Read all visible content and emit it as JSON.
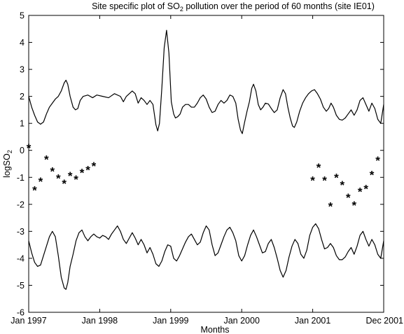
{
  "chart_data": {
    "type": "line",
    "title_prefix": "Site specific plot of SO",
    "title_sub": "2",
    "title_suffix": " pollution over the period of 60 months (site IE01)",
    "xlabel": "Months",
    "ylabel_prefix": "logSO",
    "ylabel_sub": "2",
    "xlim": [
      1,
      61
    ],
    "ylim": [
      -6,
      5
    ],
    "grid": false,
    "x_ticks": [
      {
        "x": 1,
        "label": "Jan 1997"
      },
      {
        "x": 13,
        "label": "Jan 1998"
      },
      {
        "x": 25,
        "label": "Jan 1999"
      },
      {
        "x": 37,
        "label": "Jan 2000"
      },
      {
        "x": 49,
        "label": "Jan 2001"
      },
      {
        "x": 61,
        "label": "Dec 2001"
      }
    ],
    "y_ticks": [
      -6,
      -5,
      -4,
      -3,
      -2,
      -1,
      0,
      1,
      2,
      3,
      4,
      5
    ],
    "series": [
      {
        "kind": "upper_band",
        "color": "#000000",
        "points": [
          [
            1.0,
            2.0
          ],
          [
            1.5,
            1.6
          ],
          [
            2.0,
            1.3
          ],
          [
            2.5,
            1.05
          ],
          [
            3.0,
            0.97
          ],
          [
            3.5,
            1.05
          ],
          [
            4.0,
            1.35
          ],
          [
            4.5,
            1.6
          ],
          [
            5.0,
            1.75
          ],
          [
            5.5,
            1.9
          ],
          [
            6.0,
            2.0
          ],
          [
            6.5,
            2.2
          ],
          [
            7.0,
            2.5
          ],
          [
            7.3,
            2.6
          ],
          [
            7.6,
            2.45
          ],
          [
            8.0,
            2.0
          ],
          [
            8.5,
            1.6
          ],
          [
            8.9,
            1.5
          ],
          [
            9.3,
            1.55
          ],
          [
            9.7,
            1.85
          ],
          [
            10.2,
            2.0
          ],
          [
            11.0,
            2.05
          ],
          [
            11.8,
            1.95
          ],
          [
            12.5,
            2.05
          ],
          [
            13.5,
            2.0
          ],
          [
            14.5,
            1.95
          ],
          [
            15.5,
            2.1
          ],
          [
            16.5,
            2.0
          ],
          [
            17.0,
            1.8
          ],
          [
            17.5,
            2.0
          ],
          [
            18.0,
            2.1
          ],
          [
            18.5,
            2.2
          ],
          [
            19.0,
            2.1
          ],
          [
            19.5,
            1.75
          ],
          [
            20.0,
            1.95
          ],
          [
            20.5,
            1.85
          ],
          [
            21.0,
            1.7
          ],
          [
            21.5,
            1.85
          ],
          [
            22.0,
            1.7
          ],
          [
            22.5,
            0.95
          ],
          [
            22.8,
            0.72
          ],
          [
            23.1,
            1.0
          ],
          [
            23.5,
            2.3
          ],
          [
            23.9,
            3.8
          ],
          [
            24.3,
            4.45
          ],
          [
            24.7,
            3.6
          ],
          [
            25.1,
            1.8
          ],
          [
            25.5,
            1.35
          ],
          [
            25.8,
            1.2
          ],
          [
            26.2,
            1.25
          ],
          [
            26.6,
            1.35
          ],
          [
            27.0,
            1.6
          ],
          [
            27.5,
            1.7
          ],
          [
            28.0,
            1.7
          ],
          [
            28.5,
            1.6
          ],
          [
            29.0,
            1.6
          ],
          [
            29.5,
            1.75
          ],
          [
            30.0,
            1.95
          ],
          [
            30.5,
            2.05
          ],
          [
            31.0,
            1.9
          ],
          [
            31.5,
            1.6
          ],
          [
            32.0,
            1.4
          ],
          [
            32.5,
            1.45
          ],
          [
            33.0,
            1.7
          ],
          [
            33.5,
            1.85
          ],
          [
            34.0,
            1.75
          ],
          [
            34.5,
            1.85
          ],
          [
            35.0,
            2.05
          ],
          [
            35.5,
            2.0
          ],
          [
            36.0,
            1.75
          ],
          [
            36.4,
            1.15
          ],
          [
            36.8,
            0.75
          ],
          [
            37.1,
            0.62
          ],
          [
            37.5,
            1.05
          ],
          [
            37.9,
            1.45
          ],
          [
            38.3,
            1.8
          ],
          [
            38.7,
            2.3
          ],
          [
            39.0,
            2.45
          ],
          [
            39.4,
            2.2
          ],
          [
            39.8,
            1.7
          ],
          [
            40.2,
            1.5
          ],
          [
            40.6,
            1.6
          ],
          [
            41.0,
            1.75
          ],
          [
            41.5,
            1.72
          ],
          [
            42.0,
            1.55
          ],
          [
            42.5,
            1.4
          ],
          [
            43.0,
            1.5
          ],
          [
            43.5,
            1.95
          ],
          [
            44.0,
            2.25
          ],
          [
            44.4,
            2.1
          ],
          [
            44.8,
            1.6
          ],
          [
            45.2,
            1.2
          ],
          [
            45.6,
            0.9
          ],
          [
            45.9,
            0.85
          ],
          [
            46.3,
            1.05
          ],
          [
            46.8,
            1.45
          ],
          [
            47.3,
            1.75
          ],
          [
            47.8,
            1.95
          ],
          [
            48.3,
            2.1
          ],
          [
            48.8,
            2.2
          ],
          [
            49.3,
            2.25
          ],
          [
            49.8,
            2.1
          ],
          [
            50.3,
            1.9
          ],
          [
            50.8,
            1.6
          ],
          [
            51.3,
            1.45
          ],
          [
            51.7,
            1.55
          ],
          [
            52.1,
            1.75
          ],
          [
            52.5,
            1.6
          ],
          [
            53.0,
            1.3
          ],
          [
            53.5,
            1.15
          ],
          [
            54.0,
            1.12
          ],
          [
            54.5,
            1.2
          ],
          [
            55.0,
            1.35
          ],
          [
            55.5,
            1.5
          ],
          [
            56.0,
            1.3
          ],
          [
            56.5,
            1.5
          ],
          [
            57.0,
            1.85
          ],
          [
            57.5,
            1.95
          ],
          [
            58.0,
            1.7
          ],
          [
            58.5,
            1.45
          ],
          [
            59.0,
            1.75
          ],
          [
            59.5,
            1.55
          ],
          [
            60.0,
            1.15
          ],
          [
            60.5,
            1.0
          ],
          [
            61.0,
            1.7
          ]
        ]
      },
      {
        "kind": "lower_band",
        "color": "#000000",
        "points": [
          [
            1.0,
            -3.35
          ],
          [
            1.5,
            -3.8
          ],
          [
            2.0,
            -4.15
          ],
          [
            2.5,
            -4.3
          ],
          [
            3.0,
            -4.25
          ],
          [
            3.5,
            -3.9
          ],
          [
            4.0,
            -3.55
          ],
          [
            4.5,
            -3.2
          ],
          [
            5.0,
            -3.0
          ],
          [
            5.5,
            -3.2
          ],
          [
            6.0,
            -3.9
          ],
          [
            6.5,
            -4.7
          ],
          [
            7.0,
            -5.1
          ],
          [
            7.3,
            -5.15
          ],
          [
            7.6,
            -4.9
          ],
          [
            8.0,
            -4.3
          ],
          [
            8.5,
            -3.85
          ],
          [
            9.0,
            -3.35
          ],
          [
            9.5,
            -3.05
          ],
          [
            10.0,
            -2.95
          ],
          [
            10.5,
            -3.2
          ],
          [
            11.0,
            -3.35
          ],
          [
            11.5,
            -3.2
          ],
          [
            12.0,
            -3.1
          ],
          [
            12.5,
            -3.2
          ],
          [
            13.0,
            -3.25
          ],
          [
            13.5,
            -3.15
          ],
          [
            14.0,
            -3.2
          ],
          [
            14.5,
            -3.3
          ],
          [
            15.0,
            -3.1
          ],
          [
            15.5,
            -2.95
          ],
          [
            16.0,
            -2.8
          ],
          [
            16.5,
            -3.0
          ],
          [
            17.0,
            -3.3
          ],
          [
            17.5,
            -3.45
          ],
          [
            18.0,
            -3.25
          ],
          [
            18.5,
            -3.05
          ],
          [
            19.0,
            -3.25
          ],
          [
            19.5,
            -3.5
          ],
          [
            20.0,
            -3.3
          ],
          [
            20.5,
            -3.5
          ],
          [
            21.0,
            -3.8
          ],
          [
            21.5,
            -3.6
          ],
          [
            22.0,
            -3.85
          ],
          [
            22.5,
            -4.2
          ],
          [
            23.0,
            -4.3
          ],
          [
            23.5,
            -4.1
          ],
          [
            24.0,
            -3.75
          ],
          [
            24.5,
            -3.5
          ],
          [
            25.0,
            -3.55
          ],
          [
            25.5,
            -4.0
          ],
          [
            26.0,
            -4.1
          ],
          [
            26.5,
            -3.9
          ],
          [
            27.0,
            -3.65
          ],
          [
            27.5,
            -3.4
          ],
          [
            28.0,
            -3.2
          ],
          [
            28.5,
            -3.1
          ],
          [
            29.0,
            -3.3
          ],
          [
            29.5,
            -3.5
          ],
          [
            30.0,
            -3.4
          ],
          [
            30.5,
            -3.05
          ],
          [
            31.0,
            -2.8
          ],
          [
            31.5,
            -2.95
          ],
          [
            32.0,
            -3.5
          ],
          [
            32.5,
            -3.9
          ],
          [
            33.0,
            -3.8
          ],
          [
            33.5,
            -3.5
          ],
          [
            34.0,
            -3.2
          ],
          [
            34.5,
            -2.95
          ],
          [
            35.0,
            -2.85
          ],
          [
            35.5,
            -3.05
          ],
          [
            36.0,
            -3.35
          ],
          [
            36.5,
            -3.9
          ],
          [
            37.0,
            -4.1
          ],
          [
            37.5,
            -3.9
          ],
          [
            38.0,
            -3.5
          ],
          [
            38.5,
            -3.15
          ],
          [
            39.0,
            -2.95
          ],
          [
            39.5,
            -3.2
          ],
          [
            40.0,
            -3.5
          ],
          [
            40.5,
            -3.8
          ],
          [
            41.0,
            -3.75
          ],
          [
            41.5,
            -3.45
          ],
          [
            42.0,
            -3.3
          ],
          [
            42.5,
            -3.6
          ],
          [
            43.0,
            -4.0
          ],
          [
            43.5,
            -4.45
          ],
          [
            44.0,
            -4.7
          ],
          [
            44.5,
            -4.45
          ],
          [
            45.0,
            -3.95
          ],
          [
            45.5,
            -3.55
          ],
          [
            46.0,
            -3.3
          ],
          [
            46.5,
            -3.45
          ],
          [
            47.0,
            -3.85
          ],
          [
            47.5,
            -4.0
          ],
          [
            48.0,
            -3.7
          ],
          [
            48.5,
            -3.15
          ],
          [
            49.0,
            -2.85
          ],
          [
            49.5,
            -2.72
          ],
          [
            50.0,
            -2.9
          ],
          [
            50.5,
            -3.3
          ],
          [
            51.0,
            -3.65
          ],
          [
            51.5,
            -3.6
          ],
          [
            52.0,
            -3.45
          ],
          [
            52.5,
            -3.6
          ],
          [
            53.0,
            -3.9
          ],
          [
            53.5,
            -4.05
          ],
          [
            54.0,
            -4.05
          ],
          [
            54.5,
            -3.95
          ],
          [
            55.0,
            -3.75
          ],
          [
            55.5,
            -3.6
          ],
          [
            56.0,
            -3.85
          ],
          [
            56.5,
            -3.55
          ],
          [
            57.0,
            -3.15
          ],
          [
            57.5,
            -3.0
          ],
          [
            58.0,
            -3.3
          ],
          [
            58.5,
            -3.55
          ],
          [
            59.0,
            -3.3
          ],
          [
            59.5,
            -3.5
          ],
          [
            60.0,
            -3.85
          ],
          [
            60.5,
            -4.0
          ],
          [
            61.0,
            -3.35
          ]
        ]
      },
      {
        "kind": "observations",
        "marker": "*",
        "color": "#ff0000",
        "points": [
          [
            1.0,
            0.12
          ],
          [
            2.0,
            -1.45
          ],
          [
            3.0,
            -1.12
          ],
          [
            4.0,
            -0.3
          ],
          [
            5.0,
            -0.75
          ],
          [
            6.0,
            -1.0
          ],
          [
            7.0,
            -1.2
          ],
          [
            8.0,
            -0.92
          ],
          [
            9.0,
            -1.05
          ],
          [
            10.0,
            -0.8
          ],
          [
            11.0,
            -0.7
          ],
          [
            12.0,
            -0.55
          ],
          [
            49.0,
            -1.08
          ],
          [
            50.0,
            -0.6
          ],
          [
            51.0,
            -1.08
          ],
          [
            52.0,
            -2.05
          ],
          [
            53.0,
            -0.98
          ],
          [
            54.0,
            -1.25
          ],
          [
            55.0,
            -1.72
          ],
          [
            56.0,
            -2.0
          ],
          [
            57.0,
            -1.5
          ],
          [
            58.0,
            -1.4
          ],
          [
            59.0,
            -0.88
          ],
          [
            60.0,
            -0.35
          ]
        ]
      }
    ]
  }
}
